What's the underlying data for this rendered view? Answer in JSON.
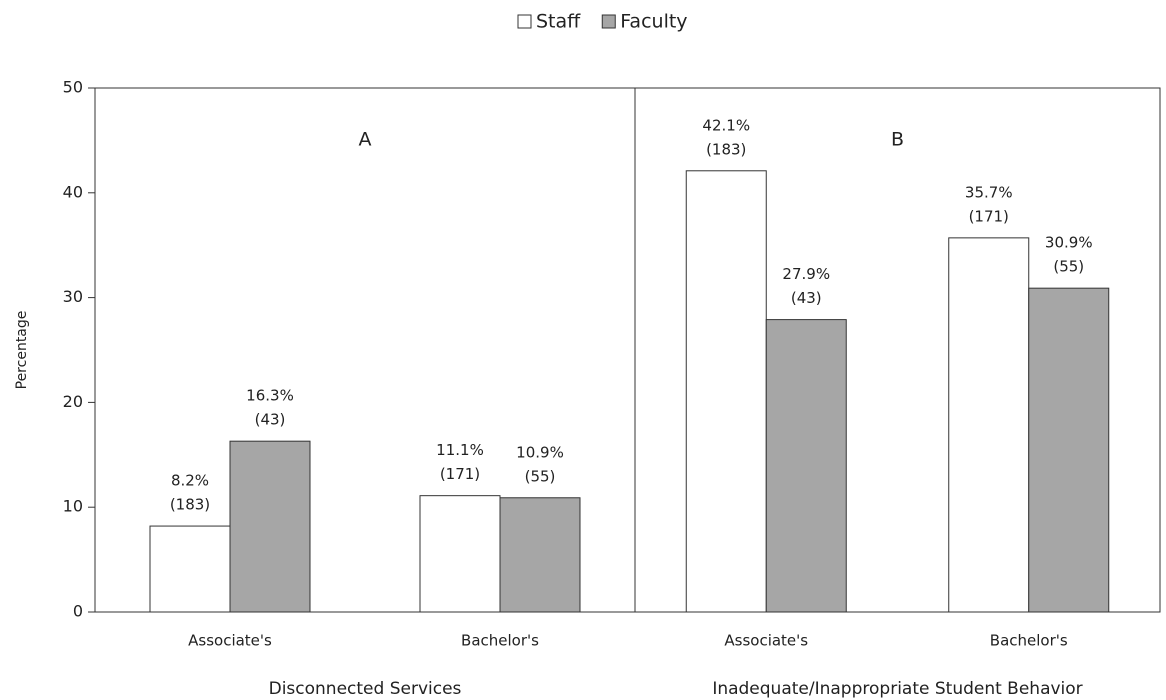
{
  "chart_data": {
    "type": "bar",
    "ylabel": "Percentage",
    "ylim": [
      0,
      50
    ],
    "yticks": [
      0,
      10,
      20,
      30,
      40,
      50
    ],
    "legend": "top",
    "series": [
      {
        "name": "Staff",
        "color": "#ffffff"
      },
      {
        "name": "Faculty",
        "color": "#a6a6a6"
      }
    ],
    "panels": [
      {
        "label": "A",
        "title": "Disconnected Services",
        "categories": [
          "Associate's",
          "Bachelor's"
        ],
        "series": [
          {
            "values": [
              8.2,
              11.1
            ],
            "value_labels": [
              "8.2%",
              "11.1%"
            ],
            "n_labels": [
              "(183)",
              "(171)"
            ]
          },
          {
            "values": [
              16.3,
              10.9
            ],
            "value_labels": [
              "16.3%",
              "10.9%"
            ],
            "n_labels": [
              "(43)",
              "(55)"
            ]
          }
        ]
      },
      {
        "label": "B",
        "title": "Inadequate/Inappropriate Student Behavior",
        "categories": [
          "Associate's",
          "Bachelor's"
        ],
        "series": [
          {
            "values": [
              42.1,
              35.7
            ],
            "value_labels": [
              "42.1%",
              "35.7%"
            ],
            "n_labels": [
              "(183)",
              "(171)"
            ]
          },
          {
            "values": [
              27.9,
              30.9
            ],
            "value_labels": [
              "27.9%",
              "30.9%"
            ],
            "n_labels": [
              "(43)",
              "(55)"
            ]
          }
        ]
      }
    ]
  }
}
